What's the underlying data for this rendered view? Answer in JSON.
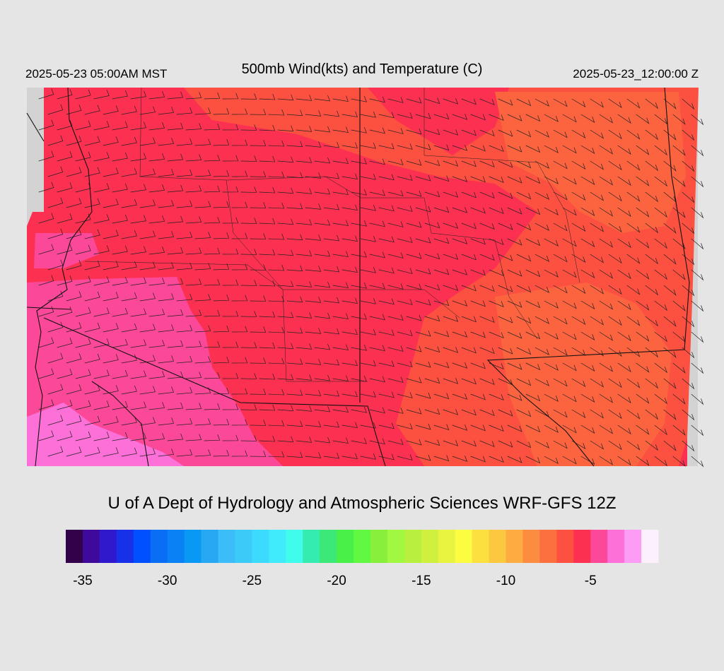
{
  "header": {
    "local_time": "2025-05-23 05:00AM MST",
    "title": "500mb Wind(kts) and Temperature (C)",
    "valid_time": "2025-05-23_12:00:00 Z"
  },
  "credit": "U of A Dept of Hydrology and Atmospheric Sciences WRF-GFS 12Z",
  "colorbar": {
    "range": [
      -36,
      -1
    ],
    "ticks": [
      -35,
      -30,
      -25,
      -20,
      -15,
      -10,
      -5
    ],
    "colors": [
      "#33004a",
      "#3f0a9c",
      "#3018cc",
      "#1830e8",
      "#0050ff",
      "#0a6ef5",
      "#0a82f5",
      "#0a98f5",
      "#28a8f2",
      "#3cbcf8",
      "#3ccaf8",
      "#3cdafc",
      "#40ecfc",
      "#40fcec",
      "#34ecb0",
      "#3ce878",
      "#48f048",
      "#60f840",
      "#88f03c",
      "#a0f840",
      "#b8f040",
      "#d0f040",
      "#e8f440",
      "#fcfc40",
      "#fce040",
      "#fcc840",
      "#fcac40",
      "#fc8c40",
      "#fc7040",
      "#fc5040",
      "#fc3050",
      "#fc4898",
      "#fc70d8",
      "#fc9cf4",
      "#fcf0fc"
    ]
  }
}
